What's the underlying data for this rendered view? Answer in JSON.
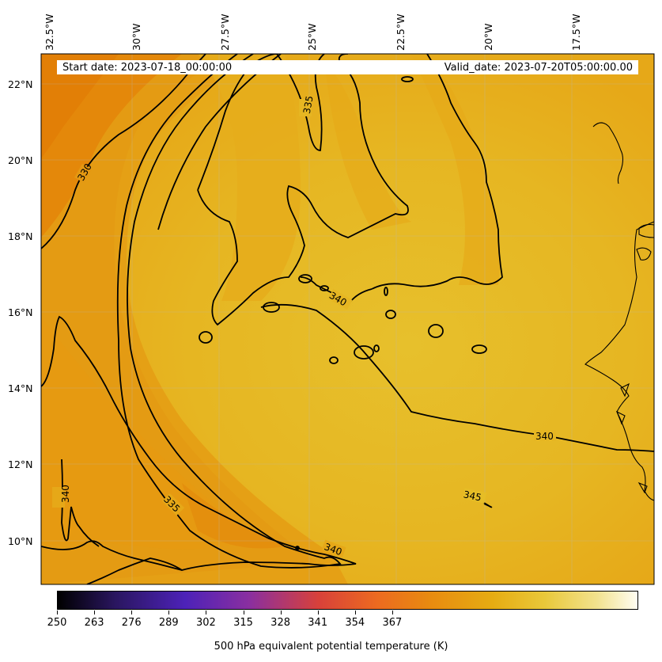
{
  "header": {
    "start_date": "Start date: 2023-07-18_00:00:00",
    "valid_date": "Valid_date: 2023-07-20T05:00:00.00"
  },
  "map": {
    "lon_labels": [
      "32.5°W",
      "30°W",
      "27.5°W",
      "25°W",
      "22.5°W",
      "20°W",
      "17.5°W"
    ],
    "lat_labels": [
      "22°N",
      "20°N",
      "18°N",
      "16°N",
      "14°N",
      "12°N",
      "10°N"
    ],
    "contour_labels": [
      "330",
      "335",
      "335",
      "340",
      "340",
      "340",
      "340",
      "345"
    ],
    "colors": {
      "field_low": "#e4850a",
      "field_mid": "#e6a516",
      "field_high": "#e6bd26",
      "contour": "#000000",
      "coastline": "#000000"
    }
  },
  "colorbar": {
    "ticks": [
      "250",
      "263",
      "276",
      "289",
      "302",
      "315",
      "328",
      "341",
      "354",
      "367"
    ],
    "label": "500 hPa equivalent potential temperature (K)"
  }
}
